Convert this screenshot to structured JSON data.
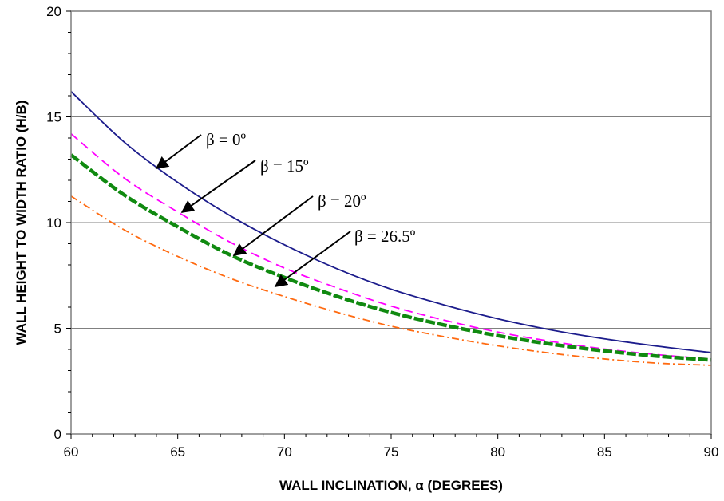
{
  "chart_data": {
    "type": "line",
    "title": "",
    "xlabel": "WALL INCLINATION, α (DEGREES)",
    "ylabel": "WALL HEIGHT TO WIDTH RATIO (H/B)",
    "xlim": [
      60,
      90
    ],
    "ylim": [
      0,
      20
    ],
    "x_ticks": [
      "60",
      "65",
      "70",
      "75",
      "80",
      "85",
      "90"
    ],
    "y_ticks": [
      "0",
      "5",
      "10",
      "15",
      "20"
    ],
    "grid": "horizontal major lines at 5, 10, 15",
    "x": [
      60,
      62.5,
      65,
      67.5,
      70,
      72.5,
      75,
      77.5,
      80,
      82.5,
      85,
      87.5,
      90
    ],
    "series": [
      {
        "name": "β = 0º",
        "color": "#1c1c8c",
        "style": "solid",
        "values": [
          16.2,
          13.8,
          11.9,
          10.3,
          8.95,
          7.8,
          6.85,
          6.1,
          5.45,
          4.92,
          4.5,
          4.15,
          3.85
        ]
      },
      {
        "name": "β = 15º",
        "color": "#ff00ff",
        "style": "dashed",
        "values": [
          14.2,
          12.1,
          10.5,
          9.05,
          7.85,
          6.9,
          6.05,
          5.38,
          4.82,
          4.38,
          4.02,
          3.75,
          3.55
        ]
      },
      {
        "name": "β = 20º",
        "color": "#108a10",
        "style": "thick-dashed",
        "values": [
          13.2,
          11.3,
          9.8,
          8.45,
          7.4,
          6.5,
          5.75,
          5.15,
          4.65,
          4.25,
          3.93,
          3.68,
          3.5
        ]
      },
      {
        "name": "β = 26.5º",
        "color": "#ff6a10",
        "style": "dash-dot",
        "values": [
          11.25,
          9.65,
          8.4,
          7.35,
          6.5,
          5.75,
          5.1,
          4.6,
          4.17,
          3.82,
          3.55,
          3.35,
          3.25
        ]
      }
    ],
    "annotations": [
      {
        "text": "β = 0º"
      },
      {
        "text": "β = 15º"
      },
      {
        "text": "β = 20º"
      },
      {
        "text": "β = 26.5º"
      }
    ]
  }
}
